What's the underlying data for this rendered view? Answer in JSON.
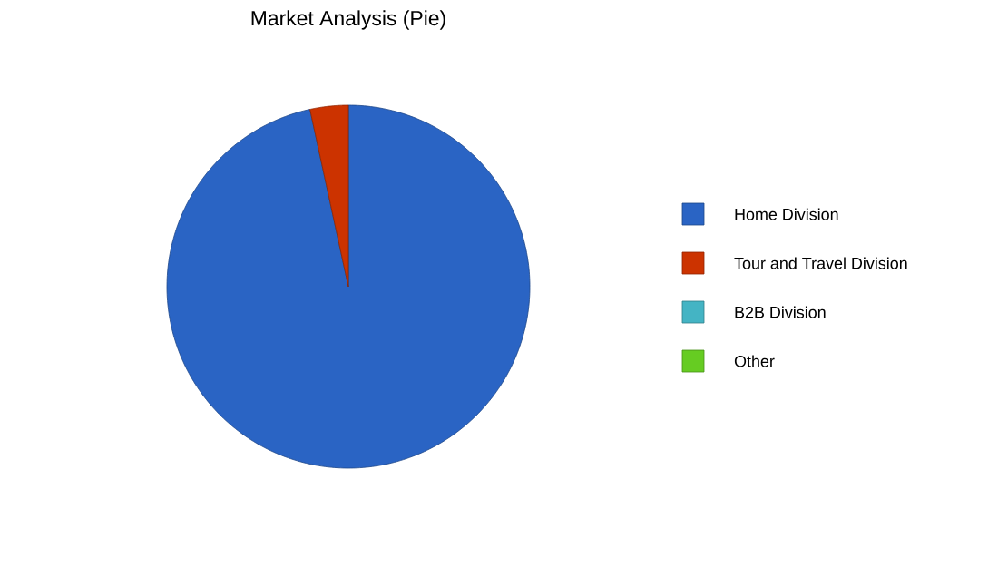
{
  "chart_data": {
    "type": "pie",
    "title": "Market Analysis (Pie)",
    "categories": [
      "Home Division",
      "Tour and Travel Division",
      "B2B Division",
      "Other"
    ],
    "values": [
      96.6,
      3.4,
      0,
      0
    ],
    "colors": [
      "#2a64c4",
      "#cc3300",
      "#44b4c4",
      "#66cc22"
    ],
    "legend": "right"
  }
}
